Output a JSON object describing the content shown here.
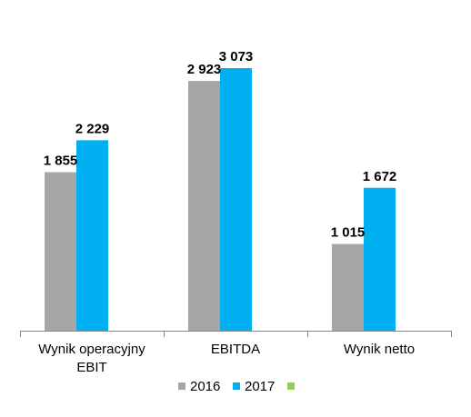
{
  "chart_data": {
    "type": "bar",
    "title": "",
    "xlabel": "",
    "ylabel": "",
    "ylim": [
      0,
      3300
    ],
    "grid": false,
    "legend_position": "bottom",
    "categories": [
      [
        "Wynik operacyjny",
        "EBIT"
      ],
      [
        "EBITDA"
      ],
      [
        "Wynik netto"
      ]
    ],
    "series": [
      {
        "name": "2016",
        "color": "#A6A6A6",
        "values": [
          1855,
          2923,
          1015
        ],
        "labels": [
          "1 855",
          "2 923",
          "1 015"
        ]
      },
      {
        "name": "2017",
        "color": "#00B0F0",
        "values": [
          2229,
          3073,
          1672
        ],
        "labels": [
          "2 229",
          "3 073",
          "1 672"
        ]
      }
    ],
    "legend": [
      {
        "name": "2016",
        "color": "#A6A6A6"
      },
      {
        "name": "2017",
        "color": "#00B0F0"
      },
      {
        "name": "",
        "color": "#92D050"
      }
    ]
  }
}
